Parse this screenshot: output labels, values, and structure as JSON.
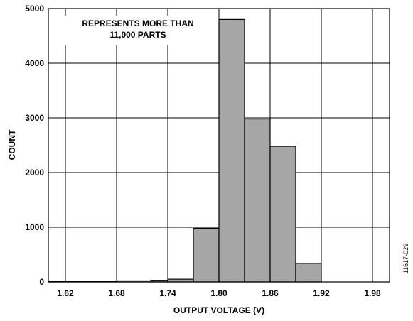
{
  "chart_data": {
    "type": "bar",
    "title": "",
    "xlabel": "OUTPUT VOLTAGE (V)",
    "ylabel": "COUNT",
    "xlim": [
      1.6,
      2.0
    ],
    "ylim": [
      0,
      5000
    ],
    "x_ticks": [
      "1.62",
      "1.68",
      "1.74",
      "1.80",
      "1.86",
      "1.92",
      "1.98"
    ],
    "x_tick_values": [
      1.62,
      1.68,
      1.74,
      1.8,
      1.86,
      1.92,
      1.98
    ],
    "y_ticks": [
      "0",
      "1000",
      "2000",
      "3000",
      "4000",
      "5000"
    ],
    "y_tick_values": [
      0,
      1000,
      2000,
      3000,
      4000,
      5000
    ],
    "grid": true,
    "bar_color": "#a6a6a6",
    "bins": [
      {
        "from": 1.6,
        "to": 1.62,
        "value": 10
      },
      {
        "from": 1.62,
        "to": 1.68,
        "value": 15
      },
      {
        "from": 1.68,
        "to": 1.72,
        "value": 20
      },
      {
        "from": 1.72,
        "to": 1.74,
        "value": 30
      },
      {
        "from": 1.74,
        "to": 1.77,
        "value": 50
      },
      {
        "from": 1.77,
        "to": 1.8,
        "value": 980
      },
      {
        "from": 1.8,
        "to": 1.83,
        "value": 4800
      },
      {
        "from": 1.83,
        "to": 1.86,
        "value": 2980
      },
      {
        "from": 1.86,
        "to": 1.89,
        "value": 2480
      },
      {
        "from": 1.89,
        "to": 1.92,
        "value": 340
      }
    ],
    "annotation": [
      "REPRESENTS MORE THAN",
      "11,000  PARTS"
    ],
    "figure_id": "11617-029"
  }
}
